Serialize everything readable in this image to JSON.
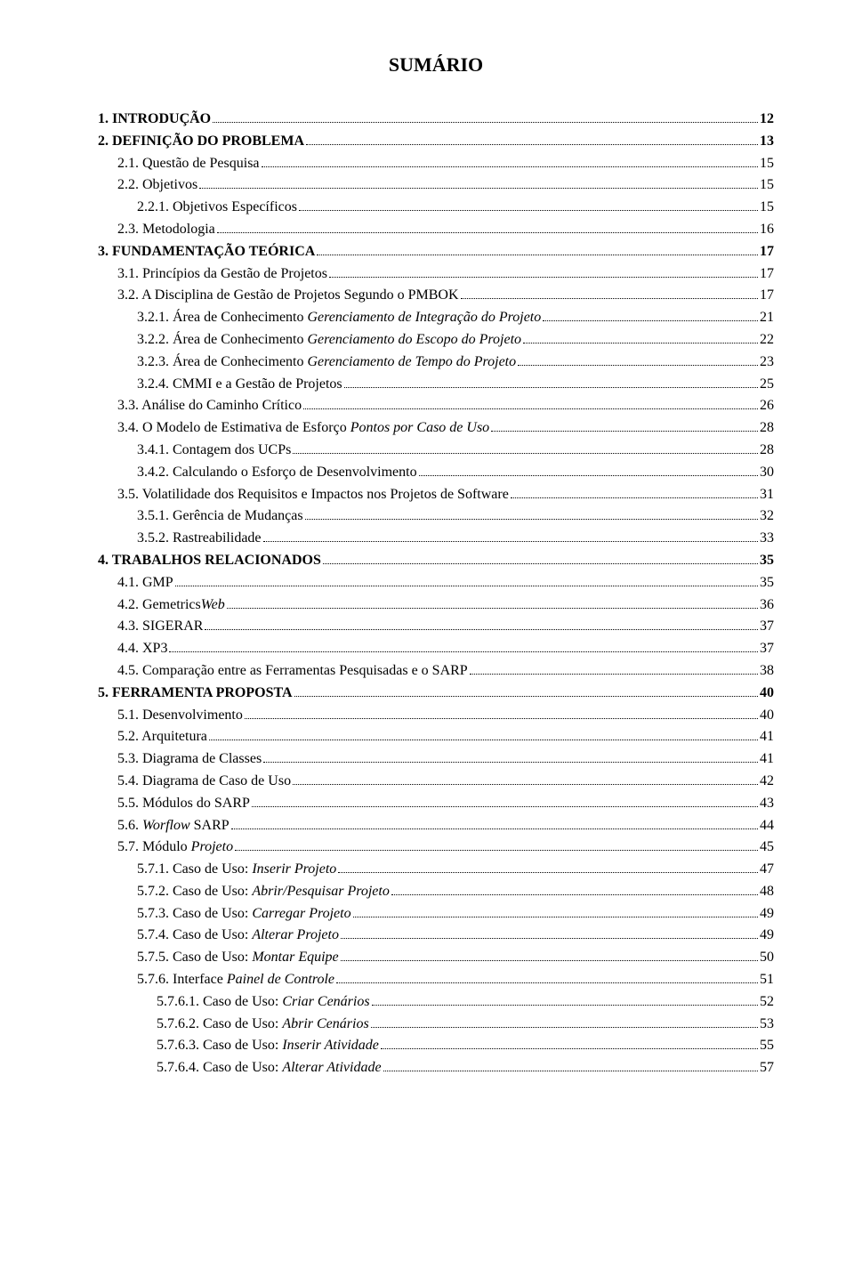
{
  "title": "SUMÁRIO",
  "entries": [
    {
      "level": 0,
      "bold": true,
      "label_parts": [
        {
          "t": "1. INTRODUÇÃO"
        }
      ],
      "page": "12"
    },
    {
      "level": 0,
      "bold": true,
      "label_parts": [
        {
          "t": "2. DEFINIÇÃO DO PROBLEMA"
        }
      ],
      "page": "13"
    },
    {
      "level": 1,
      "label_parts": [
        {
          "t": "2.1. Questão de Pesquisa"
        }
      ],
      "page": "15"
    },
    {
      "level": 1,
      "label_parts": [
        {
          "t": "2.2. Objetivos"
        }
      ],
      "page": "15"
    },
    {
      "level": 2,
      "label_parts": [
        {
          "t": "2.2.1. Objetivos Específicos"
        }
      ],
      "page": "15"
    },
    {
      "level": 1,
      "label_parts": [
        {
          "t": "2.3. Metodologia"
        }
      ],
      "page": "16"
    },
    {
      "level": 0,
      "bold": true,
      "label_parts": [
        {
          "t": "3. FUNDAMENTAÇÃO TEÓRICA"
        }
      ],
      "page": "17"
    },
    {
      "level": 1,
      "label_parts": [
        {
          "t": "3.1. Princípios da Gestão de Projetos"
        }
      ],
      "page": "17"
    },
    {
      "level": 1,
      "label_parts": [
        {
          "t": "3.2. A Disciplina de Gestão de Projetos Segundo o PMBOK"
        }
      ],
      "page": "17"
    },
    {
      "level": 2,
      "label_parts": [
        {
          "t": "3.2.1. Área de Conhecimento "
        },
        {
          "t": "Gerenciamento de Integração do Projeto",
          "i": true
        }
      ],
      "page": "21"
    },
    {
      "level": 2,
      "label_parts": [
        {
          "t": "3.2.2. Área de Conhecimento "
        },
        {
          "t": "Gerenciamento do Escopo do Projeto",
          "i": true
        }
      ],
      "page": "22"
    },
    {
      "level": 2,
      "label_parts": [
        {
          "t": "3.2.3. Área de Conhecimento "
        },
        {
          "t": "Gerenciamento de Tempo do Projeto",
          "i": true
        }
      ],
      "page": "23"
    },
    {
      "level": 2,
      "label_parts": [
        {
          "t": "3.2.4. CMMI e a Gestão de Projetos"
        }
      ],
      "page": "25"
    },
    {
      "level": 1,
      "label_parts": [
        {
          "t": "3.3. Análise do Caminho Crítico"
        }
      ],
      "page": "26"
    },
    {
      "level": 1,
      "label_parts": [
        {
          "t": "3.4. O Modelo de Estimativa de Esforço "
        },
        {
          "t": "Pontos por Caso de Uso",
          "i": true
        }
      ],
      "page": "28"
    },
    {
      "level": 2,
      "label_parts": [
        {
          "t": "3.4.1. Contagem dos UCPs"
        }
      ],
      "page": "28"
    },
    {
      "level": 2,
      "label_parts": [
        {
          "t": "3.4.2. Calculando o Esforço de Desenvolvimento"
        }
      ],
      "page": "30"
    },
    {
      "level": 1,
      "label_parts": [
        {
          "t": "3.5. Volatilidade dos Requisitos e Impactos nos Projetos de Software"
        }
      ],
      "page": "31"
    },
    {
      "level": 2,
      "label_parts": [
        {
          "t": "3.5.1. Gerência de Mudanças"
        }
      ],
      "page": "32"
    },
    {
      "level": 2,
      "label_parts": [
        {
          "t": "3.5.2. Rastreabilidade"
        }
      ],
      "page": "33"
    },
    {
      "level": 0,
      "bold": true,
      "label_parts": [
        {
          "t": "4. TRABALHOS RELACIONADOS"
        }
      ],
      "page": "35"
    },
    {
      "level": 1,
      "label_parts": [
        {
          "t": "4.1. GMP"
        }
      ],
      "page": "35"
    },
    {
      "level": 1,
      "label_parts": [
        {
          "t": "4.2. Gemetrics"
        },
        {
          "t": "Web",
          "i": true
        }
      ],
      "page": "36"
    },
    {
      "level": 1,
      "label_parts": [
        {
          "t": "4.3. SIGERAR"
        }
      ],
      "page": "37"
    },
    {
      "level": 1,
      "label_parts": [
        {
          "t": "4.4. XP3"
        }
      ],
      "page": "37"
    },
    {
      "level": 1,
      "label_parts": [
        {
          "t": "4.5. Comparação entre as Ferramentas Pesquisadas e o SARP"
        }
      ],
      "page": "38"
    },
    {
      "level": 0,
      "bold": true,
      "label_parts": [
        {
          "t": "5. FERRAMENTA PROPOSTA"
        }
      ],
      "page": "40"
    },
    {
      "level": 1,
      "label_parts": [
        {
          "t": "5.1. Desenvolvimento"
        }
      ],
      "page": "40"
    },
    {
      "level": 1,
      "label_parts": [
        {
          "t": "5.2. Arquitetura"
        }
      ],
      "page": "41"
    },
    {
      "level": 1,
      "label_parts": [
        {
          "t": "5.3. Diagrama de Classes"
        }
      ],
      "page": "41"
    },
    {
      "level": 1,
      "label_parts": [
        {
          "t": "5.4. Diagrama de Caso de Uso"
        }
      ],
      "page": "42"
    },
    {
      "level": 1,
      "label_parts": [
        {
          "t": "5.5. Módulos do SARP"
        }
      ],
      "page": "43"
    },
    {
      "level": 1,
      "label_parts": [
        {
          "t": "5.6. "
        },
        {
          "t": "Worflow",
          "i": true
        },
        {
          "t": " SARP"
        }
      ],
      "page": "44"
    },
    {
      "level": 1,
      "label_parts": [
        {
          "t": "5.7. Módulo "
        },
        {
          "t": "Projeto",
          "i": true
        }
      ],
      "page": "45"
    },
    {
      "level": 2,
      "label_parts": [
        {
          "t": "5.7.1. Caso de Uso: "
        },
        {
          "t": "Inserir Projeto",
          "i": true
        }
      ],
      "page": "47"
    },
    {
      "level": 2,
      "label_parts": [
        {
          "t": "5.7.2. Caso de Uso: "
        },
        {
          "t": "Abrir/Pesquisar Projeto",
          "i": true
        }
      ],
      "page": "48"
    },
    {
      "level": 2,
      "label_parts": [
        {
          "t": "5.7.3. Caso de Uso: "
        },
        {
          "t": "Carregar Projeto",
          "i": true
        }
      ],
      "page": "49"
    },
    {
      "level": 2,
      "label_parts": [
        {
          "t": "5.7.4. Caso de Uso: "
        },
        {
          "t": "Alterar Projeto",
          "i": true
        }
      ],
      "page": "49"
    },
    {
      "level": 2,
      "label_parts": [
        {
          "t": "5.7.5. Caso de Uso: "
        },
        {
          "t": "Montar Equipe",
          "i": true
        }
      ],
      "page": "50"
    },
    {
      "level": 2,
      "label_parts": [
        {
          "t": "5.7.6. Interface "
        },
        {
          "t": "Painel de Controle",
          "i": true
        }
      ],
      "page": "51"
    },
    {
      "level": 3,
      "label_parts": [
        {
          "t": "5.7.6.1. Caso de Uso: "
        },
        {
          "t": "Criar Cenários",
          "i": true
        }
      ],
      "page": "52"
    },
    {
      "level": 3,
      "label_parts": [
        {
          "t": "5.7.6.2. Caso de Uso: "
        },
        {
          "t": "Abrir Cenários",
          "i": true
        }
      ],
      "page": "53"
    },
    {
      "level": 3,
      "label_parts": [
        {
          "t": "5.7.6.3. Caso de Uso: "
        },
        {
          "t": "Inserir Atividade",
          "i": true
        }
      ],
      "page": "55"
    },
    {
      "level": 3,
      "label_parts": [
        {
          "t": "5.7.6.4. Caso de Uso: "
        },
        {
          "t": "Alterar Atividade",
          "i": true
        }
      ],
      "page": "57"
    }
  ]
}
